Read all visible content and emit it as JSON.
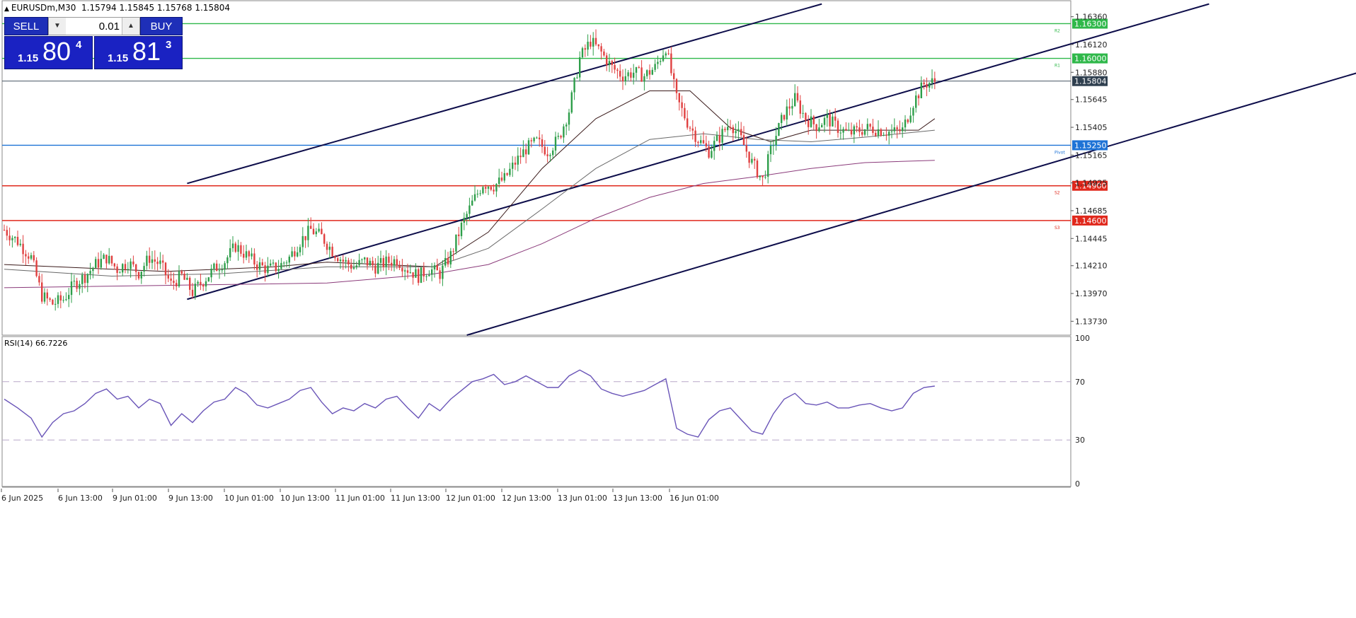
{
  "header": {
    "symbol": "EURUSDm,M30",
    "ohlc": "1.15794 1.15845 1.15768 1.15804"
  },
  "trade_panel": {
    "sell_label": "SELL",
    "buy_label": "BUY",
    "lot_value": "0.01",
    "bid_small": "1.15",
    "bid_big": "80",
    "bid_sup": "4",
    "ask_small": "1.15",
    "ask_big": "81",
    "ask_sup": "3",
    "button_color": "#1e2fb8"
  },
  "rsi": {
    "label": "RSI(14) 66.7226"
  },
  "chart_data": [
    {
      "type": "candlestick",
      "title": "EURUSDm,M30",
      "ylim": [
        1.1361,
        1.1648
      ],
      "y_tick_labels": [
        "1.16360",
        "1.16120",
        "1.15880",
        "1.15645",
        "1.15405",
        "1.15165",
        "1.14925",
        "1.14685",
        "1.14445",
        "1.14210",
        "1.13970",
        "1.13730"
      ],
      "x_tick_labels": [
        "6 Jun 2025",
        "6 Jun 13:00",
        "9 Jun 01:00",
        "9 Jun 13:00",
        "10 Jun 01:00",
        "10 Jun 13:00",
        "11 Jun 01:00",
        "11 Jun 13:00",
        "12 Jun 01:00",
        "12 Jun 13:00",
        "13 Jun 01:00",
        "13 Jun 13:00",
        "16 Jun 01:00"
      ],
      "close_path": [
        [
          0,
          1.1452
        ],
        [
          5,
          1.1442
        ],
        [
          10,
          1.1428
        ],
        [
          14,
          1.1395
        ],
        [
          18,
          1.1388
        ],
        [
          22,
          1.1392
        ],
        [
          26,
          1.1405
        ],
        [
          30,
          1.1412
        ],
        [
          34,
          1.1422
        ],
        [
          38,
          1.1428
        ],
        [
          42,
          1.1418
        ],
        [
          46,
          1.1424
        ],
        [
          50,
          1.1415
        ],
        [
          54,
          1.1428
        ],
        [
          58,
          1.1422
        ],
        [
          62,
          1.1405
        ],
        [
          66,
          1.1412
        ],
        [
          70,
          1.1398
        ],
        [
          74,
          1.1408
        ],
        [
          78,
          1.1418
        ],
        [
          82,
          1.1425
        ],
        [
          86,
          1.1438
        ],
        [
          90,
          1.143
        ],
        [
          94,
          1.1422
        ],
        [
          98,
          1.1418
        ],
        [
          102,
          1.142
        ],
        [
          106,
          1.1428
        ],
        [
          110,
          1.1442
        ],
        [
          114,
          1.1452
        ],
        [
          118,
          1.1446
        ],
        [
          122,
          1.1434
        ],
        [
          126,
          1.1425
        ],
        [
          130,
          1.142
        ],
        [
          134,
          1.1425
        ],
        [
          138,
          1.142
        ],
        [
          142,
          1.1424
        ],
        [
          146,
          1.1426
        ],
        [
          150,
          1.1418
        ],
        [
          154,
          1.1412
        ],
        [
          158,
          1.1418
        ],
        [
          162,
          1.1414
        ],
        [
          166,
          1.143
        ],
        [
          170,
          1.1455
        ],
        [
          174,
          1.1475
        ],
        [
          178,
          1.1492
        ],
        [
          182,
          1.149
        ],
        [
          186,
          1.1496
        ],
        [
          190,
          1.151
        ],
        [
          194,
          1.1522
        ],
        [
          198,
          1.1528
        ],
        [
          202,
          1.152
        ],
        [
          206,
          1.153
        ],
        [
          210,
          1.1555
        ],
        [
          214,
          1.16
        ],
        [
          218,
          1.1615
        ],
        [
          222,
          1.1605
        ],
        [
          226,
          1.1592
        ],
        [
          230,
          1.1585
        ],
        [
          234,
          1.1588
        ],
        [
          238,
          1.1585
        ],
        [
          242,
          1.1592
        ],
        [
          246,
          1.161
        ],
        [
          250,
          1.1565
        ],
        [
          254,
          1.1545
        ],
        [
          258,
          1.153
        ],
        [
          262,
          1.152
        ],
        [
          266,
          1.1532
        ],
        [
          270,
          1.1545
        ],
        [
          274,
          1.153
        ],
        [
          278,
          1.151
        ],
        [
          282,
          1.1495
        ],
        [
          286,
          1.1528
        ],
        [
          290,
          1.1552
        ],
        [
          294,
          1.1565
        ],
        [
          298,
          1.1548
        ],
        [
          302,
          1.1542
        ],
        [
          306,
          1.1548
        ],
        [
          310,
          1.154
        ],
        [
          314,
          1.1535
        ],
        [
          318,
          1.1538
        ],
        [
          322,
          1.154
        ],
        [
          326,
          1.1538
        ],
        [
          330,
          1.1536
        ],
        [
          334,
          1.1538
        ],
        [
          338,
          1.1562
        ],
        [
          342,
          1.1578
        ],
        [
          346,
          1.158
        ]
      ],
      "series": [
        {
          "name": "",
          "values": [
            [
              0,
              1.1422
            ],
            [
              20,
              1.142
            ],
            [
              40,
              1.1418
            ],
            [
              60,
              1.1416
            ],
            [
              80,
              1.1418
            ],
            [
              100,
              1.142
            ],
            [
              120,
              1.1424
            ],
            [
              140,
              1.1422
            ],
            [
              160,
              1.142
            ],
            [
              180,
              1.145
            ],
            [
              200,
              1.1505
            ],
            [
              220,
              1.1548
            ],
            [
              240,
              1.1572
            ],
            [
              255,
              1.1572
            ],
            [
              270,
              1.154
            ],
            [
              285,
              1.1528
            ],
            [
              300,
              1.1538
            ],
            [
              320,
              1.1538
            ],
            [
              340,
              1.1538
            ],
            [
              346,
              1.1548
            ]
          ]
        },
        {
          "name": "",
          "values": [
            [
              0,
              1.1418
            ],
            [
              40,
              1.1412
            ],
            [
              80,
              1.1414
            ],
            [
              120,
              1.142
            ],
            [
              160,
              1.142
            ],
            [
              180,
              1.1436
            ],
            [
              200,
              1.147
            ],
            [
              220,
              1.1505
            ],
            [
              240,
              1.153
            ],
            [
              260,
              1.1535
            ],
            [
              280,
              1.153
            ],
            [
              300,
              1.1528
            ],
            [
              320,
              1.1532
            ],
            [
              346,
              1.1538
            ]
          ]
        },
        {
          "name": "",
          "values": [
            [
              0,
              1.1402
            ],
            [
              60,
              1.1404
            ],
            [
              120,
              1.1406
            ],
            [
              160,
              1.1414
            ],
            [
              180,
              1.1422
            ],
            [
              200,
              1.144
            ],
            [
              220,
              1.1462
            ],
            [
              240,
              1.148
            ],
            [
              260,
              1.1492
            ],
            [
              280,
              1.1498
            ],
            [
              300,
              1.1505
            ],
            [
              320,
              1.151
            ],
            [
              346,
              1.1512
            ]
          ]
        }
      ],
      "levels": [
        {
          "label": "1.16300",
          "value": 1.163,
          "color": "#2fb84a",
          "tag": "R2"
        },
        {
          "label": "1.16000",
          "value": 1.16,
          "color": "#2fb84a",
          "tag": "R1"
        },
        {
          "label": "1.15804",
          "value": 1.15804,
          "color": "#2f3f4f",
          "tag": ""
        },
        {
          "label": "1.15250",
          "value": 1.1525,
          "color": "#1e73d6",
          "tag": "Pivot"
        },
        {
          "label": "1.14900",
          "value": 1.149,
          "color": "#e0281c",
          "tag": "S2"
        },
        {
          "label": "1.14600",
          "value": 1.146,
          "color": "#e0281c",
          "tag": "S3"
        }
      ],
      "trendlines": [
        {
          "from": [
            68,
            1.1492
          ],
          "to": [
            304,
            1.1647
          ]
        },
        {
          "from": [
            68,
            1.1392
          ],
          "to": [
            448,
            1.1647
          ]
        },
        {
          "from": [
            172,
            1.1361
          ],
          "to": [
            533,
            1.1608
          ]
        }
      ],
      "colors": {
        "bull": "#2e9e4a",
        "bear": "#e04040",
        "channel": "#0d0d4a"
      }
    },
    {
      "type": "line",
      "title": "RSI(14) 66.7226",
      "ylim": [
        0,
        100
      ],
      "y_tick_labels": [
        "100",
        "70",
        "30",
        "0"
      ],
      "levels": [
        70,
        30
      ],
      "series": [
        {
          "name": "",
          "values": [
            [
              0,
              58
            ],
            [
              5,
              52
            ],
            [
              10,
              45
            ],
            [
              14,
              32
            ],
            [
              18,
              42
            ],
            [
              22,
              48
            ],
            [
              26,
              50
            ],
            [
              30,
              55
            ],
            [
              34,
              62
            ],
            [
              38,
              65
            ],
            [
              42,
              58
            ],
            [
              46,
              60
            ],
            [
              50,
              52
            ],
            [
              54,
              58
            ],
            [
              58,
              55
            ],
            [
              62,
              40
            ],
            [
              66,
              48
            ],
            [
              70,
              42
            ],
            [
              74,
              50
            ],
            [
              78,
              56
            ],
            [
              82,
              58
            ],
            [
              86,
              66
            ],
            [
              90,
              62
            ],
            [
              94,
              54
            ],
            [
              98,
              52
            ],
            [
              102,
              55
            ],
            [
              106,
              58
            ],
            [
              110,
              64
            ],
            [
              114,
              66
            ],
            [
              118,
              56
            ],
            [
              122,
              48
            ],
            [
              126,
              52
            ],
            [
              130,
              50
            ],
            [
              134,
              55
            ],
            [
              138,
              52
            ],
            [
              142,
              58
            ],
            [
              146,
              60
            ],
            [
              150,
              52
            ],
            [
              154,
              45
            ],
            [
              158,
              55
            ],
            [
              162,
              50
            ],
            [
              166,
              58
            ],
            [
              170,
              64
            ],
            [
              174,
              70
            ],
            [
              178,
              72
            ],
            [
              182,
              75
            ],
            [
              186,
              68
            ],
            [
              190,
              70
            ],
            [
              194,
              74
            ],
            [
              198,
              70
            ],
            [
              202,
              66
            ],
            [
              206,
              66
            ],
            [
              210,
              74
            ],
            [
              214,
              78
            ],
            [
              218,
              74
            ],
            [
              222,
              65
            ],
            [
              226,
              62
            ],
            [
              230,
              60
            ],
            [
              234,
              62
            ],
            [
              238,
              64
            ],
            [
              242,
              68
            ],
            [
              246,
              72
            ],
            [
              250,
              38
            ],
            [
              254,
              34
            ],
            [
              258,
              32
            ],
            [
              262,
              44
            ],
            [
              266,
              50
            ],
            [
              270,
              52
            ],
            [
              274,
              44
            ],
            [
              278,
              36
            ],
            [
              282,
              34
            ],
            [
              286,
              48
            ],
            [
              290,
              58
            ],
            [
              294,
              62
            ],
            [
              298,
              55
            ],
            [
              302,
              54
            ],
            [
              306,
              56
            ],
            [
              310,
              52
            ],
            [
              314,
              52
            ],
            [
              318,
              54
            ],
            [
              322,
              55
            ],
            [
              326,
              52
            ],
            [
              330,
              50
            ],
            [
              334,
              52
            ],
            [
              338,
              62
            ],
            [
              342,
              66
            ],
            [
              346,
              67
            ]
          ]
        }
      ]
    }
  ]
}
